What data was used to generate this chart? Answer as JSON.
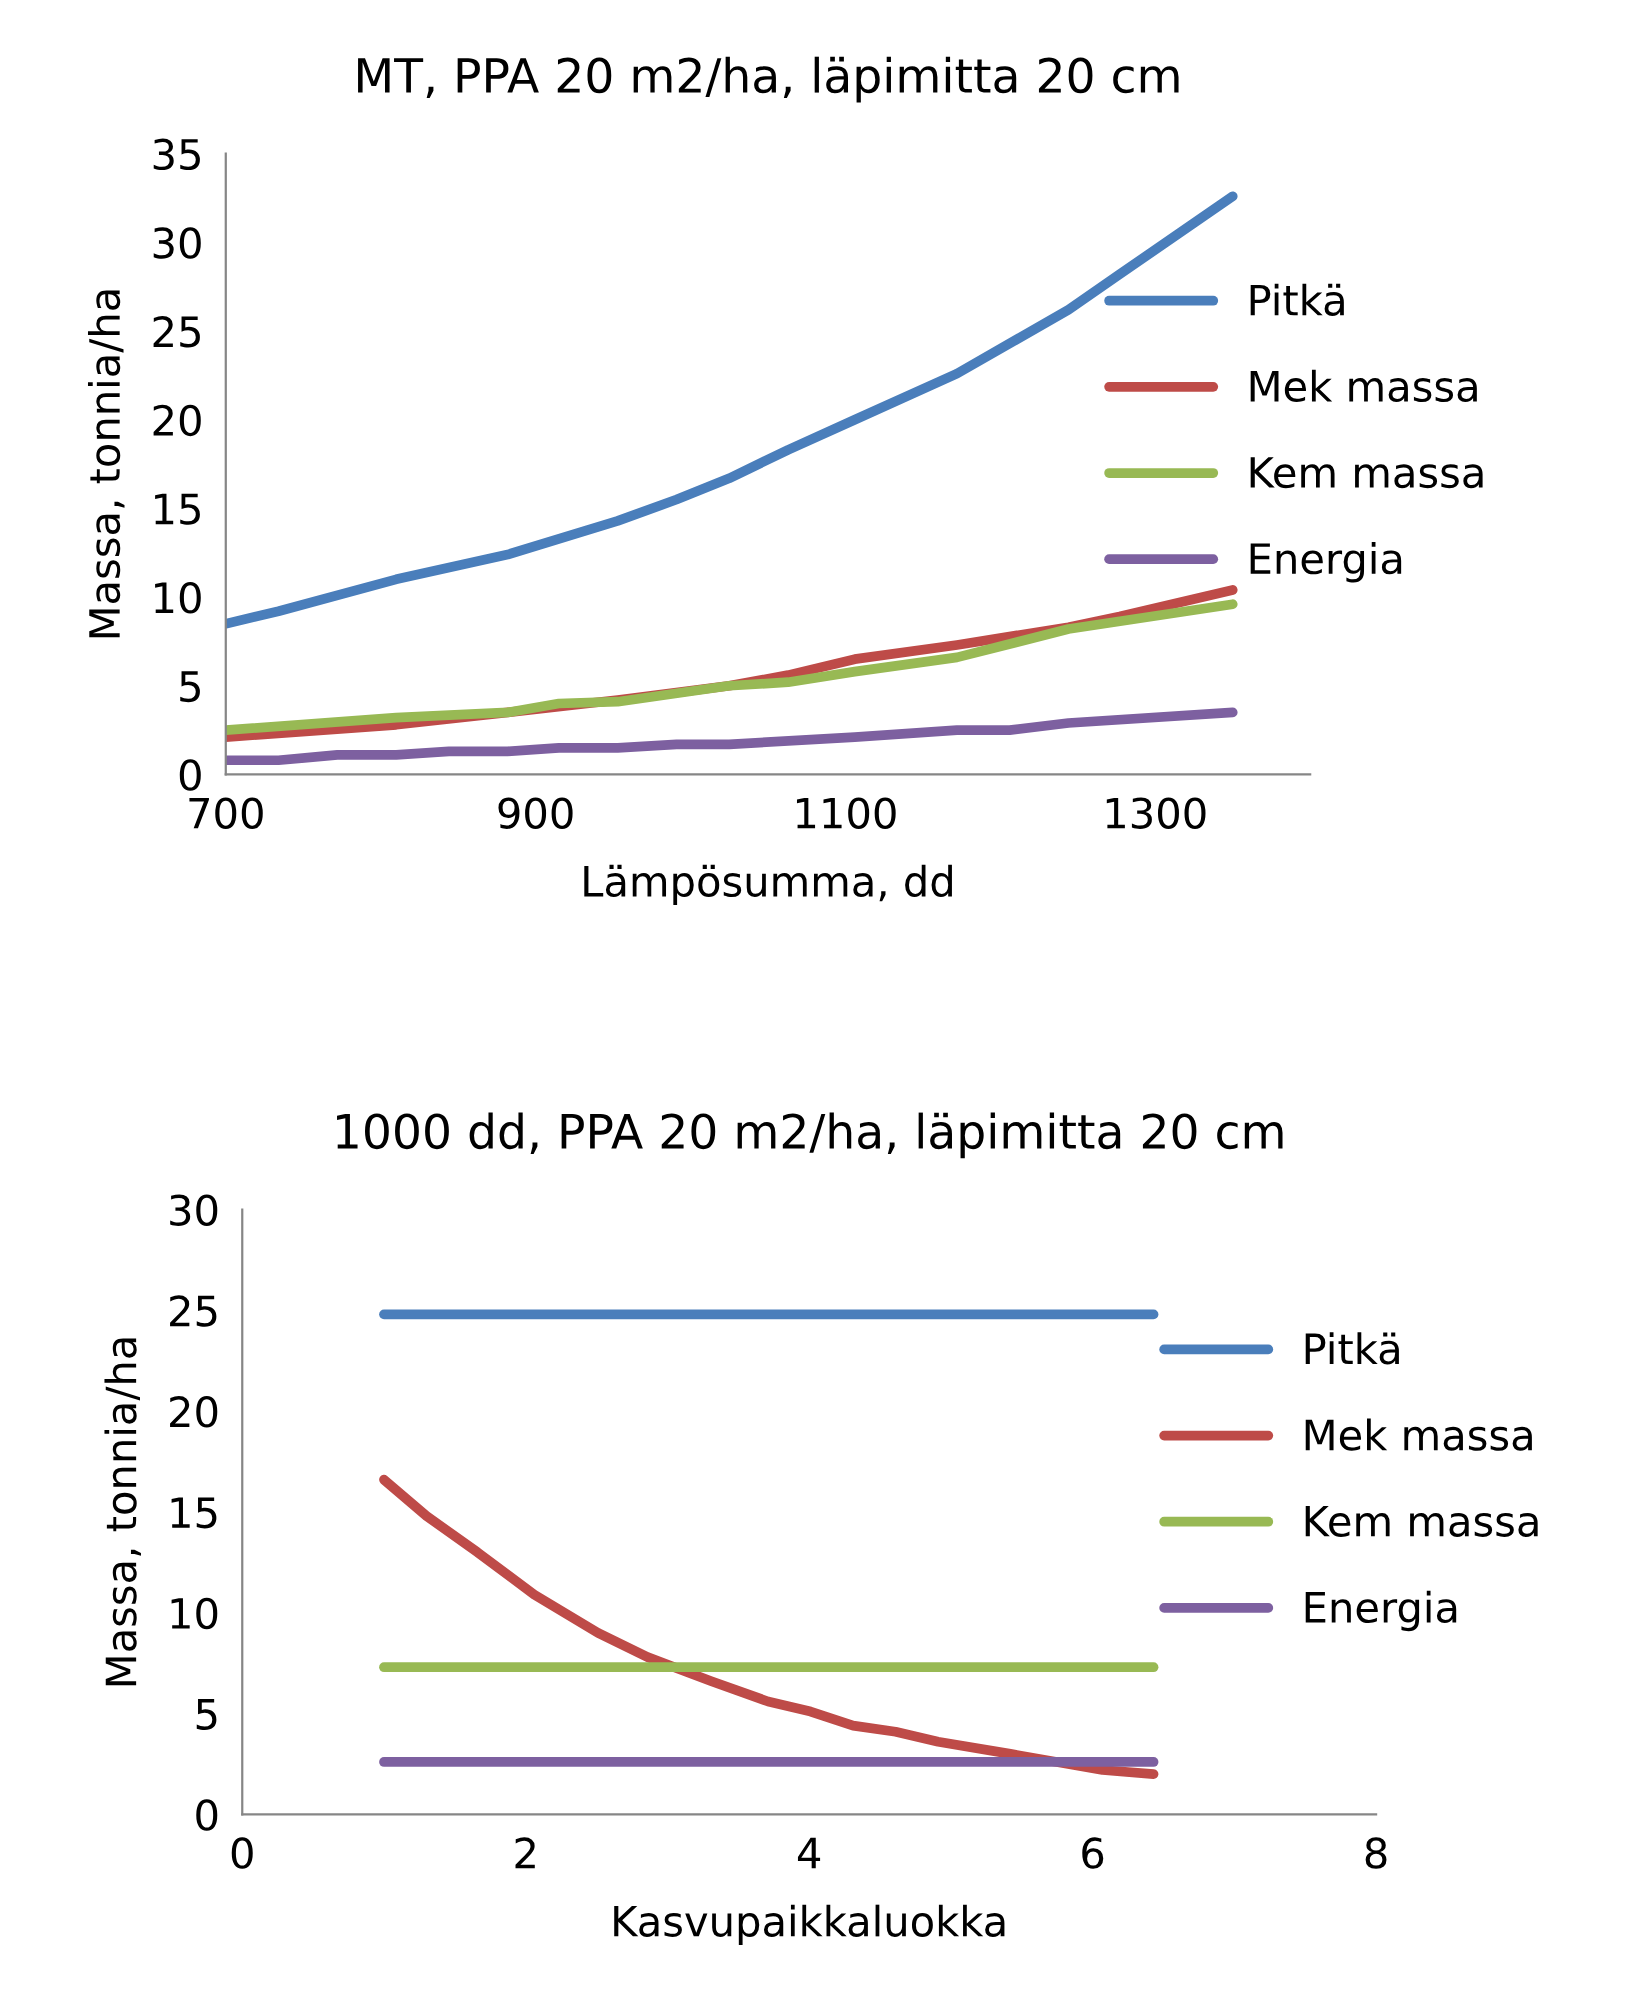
{
  "chart_data": [
    {
      "type": "line",
      "title": "MT, PPA 20 m2/ha, läpimitta 20 cm",
      "xlabel": "Lämpösumma, dd",
      "ylabel": "Massa, tonnia/ha",
      "xlim": [
        700,
        1400
      ],
      "xticks": [
        700,
        900,
        1100,
        1300
      ],
      "ylim": [
        0,
        35
      ],
      "yticks": [
        0,
        5,
        10,
        15,
        20,
        25,
        30,
        35
      ],
      "grid": false,
      "legend": "right",
      "marker": "none",
      "line_style": "solid",
      "series": [
        {
          "name": "Pitkä",
          "color": "#4a7ebb",
          "x": [
            700,
            734,
            810,
            882,
            953,
            991,
            1025,
            1063,
            1106,
            1172,
            1244,
            1277,
            1350
          ],
          "values": [
            8.5,
            9.2,
            11.0,
            12.4,
            14.3,
            15.5,
            16.7,
            18.3,
            20.0,
            22.6,
            26.2,
            28.2,
            32.6
          ]
        },
        {
          "name": "Mek massa",
          "color": "#be4b48",
          "x": [
            700,
            810,
            882,
            953,
            1025,
            1063,
            1106,
            1172,
            1244,
            1277,
            1350
          ],
          "values": [
            2.1,
            2.8,
            3.5,
            4.2,
            5.0,
            5.6,
            6.5,
            7.3,
            8.3,
            8.9,
            10.4
          ]
        },
        {
          "name": "Kem massa",
          "color": "#98b954",
          "x": [
            700,
            810,
            882,
            915,
            953,
            1025,
            1063,
            1106,
            1172,
            1244,
            1350
          ],
          "values": [
            2.5,
            3.2,
            3.5,
            4.0,
            4.1,
            5.0,
            5.2,
            5.8,
            6.6,
            8.2,
            9.6
          ]
        },
        {
          "name": "Energia",
          "color": "#7d60a0",
          "x": [
            700,
            734,
            772,
            810,
            844,
            882,
            915,
            953,
            991,
            1025,
            1106,
            1172,
            1206,
            1244,
            1350
          ],
          "values": [
            0.8,
            0.8,
            1.1,
            1.1,
            1.3,
            1.3,
            1.5,
            1.5,
            1.7,
            1.7,
            2.1,
            2.5,
            2.5,
            2.9,
            3.5
          ]
        }
      ]
    },
    {
      "type": "line",
      "title": "1000 dd, PPA 20 m2/ha, läpimitta 20 cm",
      "xlabel": "Kasvupaikkaluokka",
      "ylabel": "Massa, tonnia/ha",
      "xlim": [
        0,
        8
      ],
      "xticks": [
        0,
        2,
        4,
        6,
        8
      ],
      "ylim": [
        0,
        30
      ],
      "yticks": [
        0,
        5,
        10,
        15,
        20,
        25,
        30
      ],
      "grid": false,
      "legend": "right",
      "marker": "none",
      "line_style": "solid",
      "series": [
        {
          "name": "Pitkä",
          "color": "#4a7ebb",
          "x": [
            1.0,
            6.43
          ],
          "values": [
            24.8,
            24.8
          ]
        },
        {
          "name": "Mek massa",
          "color": "#be4b48",
          "x": [
            1.0,
            1.3,
            1.66,
            2.06,
            2.51,
            2.86,
            3.31,
            3.71,
            4.01,
            4.31,
            4.61,
            4.91,
            5.42,
            6.07,
            6.43
          ],
          "values": [
            16.6,
            14.8,
            13.0,
            10.9,
            9.0,
            7.8,
            6.6,
            5.6,
            5.1,
            4.4,
            4.1,
            3.6,
            3.0,
            2.2,
            2.0
          ]
        },
        {
          "name": "Kem massa",
          "color": "#98b954",
          "x": [
            1.0,
            6.43
          ],
          "values": [
            7.3,
            7.3
          ]
        },
        {
          "name": "Energia",
          "color": "#7d60a0",
          "x": [
            1.0,
            6.43
          ],
          "values": [
            2.6,
            2.6
          ]
        }
      ]
    }
  ]
}
